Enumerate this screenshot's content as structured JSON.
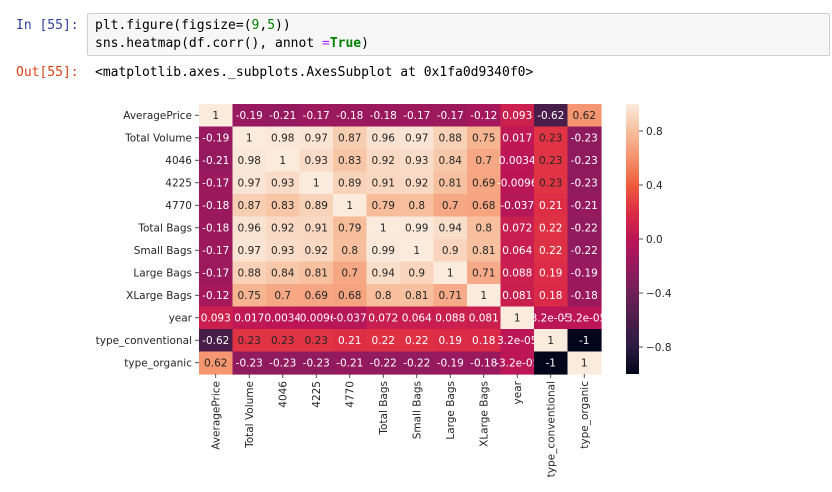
{
  "cells": {
    "input_prompt": "In [55]:",
    "output_prompt": "Out[55]:",
    "code_line_1": {
      "a": "plt.figure(figsize=(",
      "n1": "9",
      "c": ",",
      "n2": "5",
      "b": "))"
    },
    "code_line_2": {
      "a": "sns.heatmap(df.corr(), annot ",
      "eq": "=",
      "kw": "True",
      "b": ")"
    },
    "output_text": "<matplotlib.axes._subplots.AxesSubplot at 0x1fa0d9340f0>"
  },
  "chart_data": {
    "type": "heatmap",
    "labels": [
      "AveragePrice",
      "Total Volume",
      "4046",
      "4225",
      "4770",
      "Total Bags",
      "Small Bags",
      "Large Bags",
      "XLarge Bags",
      "year",
      "type_conventional",
      "type_organic"
    ],
    "values": [
      [
        1,
        -0.19,
        -0.21,
        -0.17,
        -0.18,
        -0.18,
        -0.17,
        -0.17,
        -0.12,
        0.093,
        -0.62,
        0.62
      ],
      [
        -0.19,
        1,
        0.98,
        0.97,
        0.87,
        0.96,
        0.97,
        0.88,
        0.75,
        0.017,
        0.23,
        -0.23
      ],
      [
        -0.21,
        0.98,
        1,
        0.93,
        0.83,
        0.92,
        0.93,
        0.84,
        0.7,
        0.0034,
        0.23,
        -0.23
      ],
      [
        -0.17,
        0.97,
        0.93,
        1,
        0.89,
        0.91,
        0.92,
        0.81,
        0.69,
        -0.0096,
        0.23,
        -0.23
      ],
      [
        -0.18,
        0.87,
        0.83,
        0.89,
        1,
        0.79,
        0.8,
        0.7,
        0.68,
        -0.037,
        0.21,
        -0.21
      ],
      [
        -0.18,
        0.96,
        0.92,
        0.91,
        0.79,
        1,
        0.99,
        0.94,
        0.8,
        0.072,
        0.22,
        -0.22
      ],
      [
        -0.17,
        0.97,
        0.93,
        0.92,
        0.8,
        0.99,
        1,
        0.9,
        0.81,
        0.064,
        0.22,
        -0.22
      ],
      [
        -0.17,
        0.88,
        0.84,
        0.81,
        0.7,
        0.94,
        0.9,
        1,
        0.71,
        0.088,
        0.19,
        -0.19
      ],
      [
        -0.12,
        0.75,
        0.7,
        0.69,
        0.68,
        0.8,
        0.81,
        0.71,
        1,
        0.081,
        0.18,
        -0.18
      ],
      [
        0.093,
        0.017,
        0.0034,
        -0.0096,
        -0.037,
        0.072,
        0.064,
        0.088,
        0.081,
        1,
        3.2e-05,
        -3.2e-05
      ],
      [
        -0.62,
        0.23,
        0.23,
        0.23,
        0.21,
        0.22,
        0.22,
        0.19,
        0.18,
        3.2e-05,
        1,
        -1
      ],
      [
        0.62,
        -0.23,
        -0.23,
        -0.23,
        -0.21,
        -0.22,
        -0.22,
        -0.19,
        -0.18,
        -3.2e-05,
        -1,
        1
      ]
    ],
    "annotations": [
      [
        "1",
        "-0.19",
        "-0.21",
        "-0.17",
        "-0.18",
        "-0.18",
        "-0.17",
        "-0.17",
        "-0.12",
        "0.093",
        "-0.62",
        "0.62"
      ],
      [
        "-0.19",
        "1",
        "0.98",
        "0.97",
        "0.87",
        "0.96",
        "0.97",
        "0.88",
        "0.75",
        "0.017",
        "0.23",
        "-0.23"
      ],
      [
        "-0.21",
        "0.98",
        "1",
        "0.93",
        "0.83",
        "0.92",
        "0.93",
        "0.84",
        "0.7",
        "0.0034",
        "0.23",
        "-0.23"
      ],
      [
        "-0.17",
        "0.97",
        "0.93",
        "1",
        "0.89",
        "0.91",
        "0.92",
        "0.81",
        "0.69",
        "-0.0096",
        "0.23",
        "-0.23"
      ],
      [
        "-0.18",
        "0.87",
        "0.83",
        "0.89",
        "1",
        "0.79",
        "0.8",
        "0.7",
        "0.68",
        "-0.037",
        "0.21",
        "-0.21"
      ],
      [
        "-0.18",
        "0.96",
        "0.92",
        "0.91",
        "0.79",
        "1",
        "0.99",
        "0.94",
        "0.8",
        "0.072",
        "0.22",
        "-0.22"
      ],
      [
        "-0.17",
        "0.97",
        "0.93",
        "0.92",
        "0.8",
        "0.99",
        "1",
        "0.9",
        "0.81",
        "0.064",
        "0.22",
        "-0.22"
      ],
      [
        "-0.17",
        "0.88",
        "0.84",
        "0.81",
        "0.7",
        "0.94",
        "0.9",
        "1",
        "0.71",
        "0.088",
        "0.19",
        "-0.19"
      ],
      [
        "-0.12",
        "0.75",
        "0.7",
        "0.69",
        "0.68",
        "0.8",
        "0.81",
        "0.71",
        "1",
        "0.081",
        "0.18",
        "-0.18"
      ],
      [
        "0.093",
        "0.017",
        "0.0034",
        "-0.0096",
        "-0.037",
        "0.072",
        "0.064",
        "0.088",
        "0.081",
        "1",
        "3.2e-05",
        "-3.2e-05"
      ],
      [
        "-0.62",
        "0.23",
        "0.23",
        "0.23",
        "0.21",
        "0.22",
        "0.22",
        "0.19",
        "0.18",
        "3.2e-05",
        "1",
        "-1"
      ],
      [
        "0.62",
        "-0.23",
        "-0.23",
        "-0.23",
        "-0.21",
        "-0.22",
        "-0.22",
        "-0.19",
        "-0.18",
        "-3.2e-05",
        "-1",
        "1"
      ]
    ],
    "colorbar": {
      "vmin": -1,
      "vmax": 1,
      "ticks": [
        0.8,
        0.4,
        0.0,
        -0.4,
        -0.8
      ],
      "tick_labels": [
        "0.8",
        "0.4",
        "0.0",
        "−0.4",
        "−0.8"
      ]
    },
    "colormap_stops": [
      "#03051a",
      "#2b1a41",
      "#4c1d4b",
      "#701f57",
      "#96195f",
      "#bc1656",
      "#dd2c45",
      "#ef5d3c",
      "#f5916c",
      "#f7bf9d",
      "#faebdd"
    ],
    "annot_dark_color": "#262626",
    "annot_light_color": "#ffffff"
  }
}
